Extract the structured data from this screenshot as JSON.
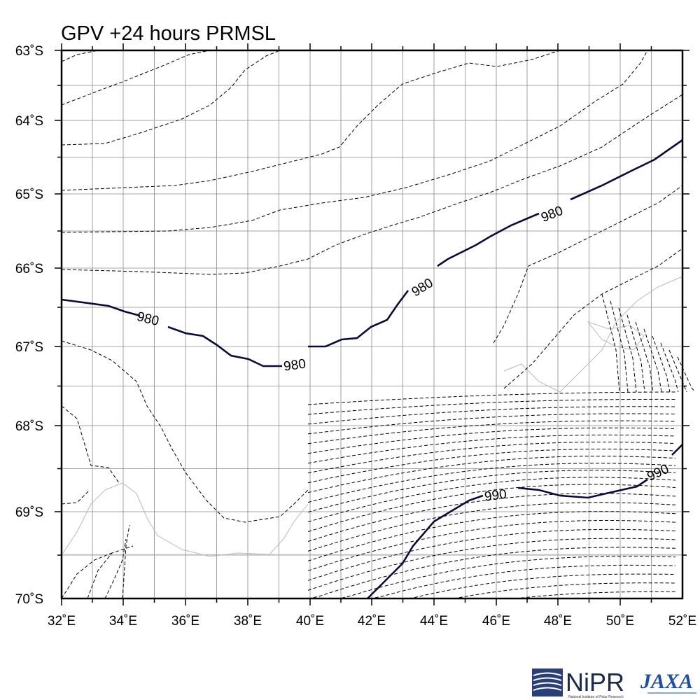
{
  "map": {
    "title": "GPV +24 hours PRMSL",
    "lat_labels": [
      "63˚S",
      "64˚S",
      "65˚S",
      "66˚S",
      "67˚S",
      "68˚S",
      "69˚S",
      "70˚S"
    ],
    "lon_labels": [
      "32˚E",
      "34˚E",
      "36˚E",
      "38˚E",
      "40˚E",
      "42˚E",
      "44˚E",
      "46˚E",
      "48˚E",
      "50˚E",
      "52˚E"
    ],
    "contour_labels": [
      "980",
      "980",
      "980",
      "980",
      "990",
      "990"
    ],
    "colors": {
      "labeled_isobar": "#0a0a3c",
      "dashed_isobar": "#000000",
      "grid": "#888888",
      "coast": "#bbbbbb"
    }
  },
  "logos": {
    "nipr_text": "NiPR",
    "nipr_subtext": "National Institute of Polar Research",
    "jaxa_text": "JAXA"
  }
}
